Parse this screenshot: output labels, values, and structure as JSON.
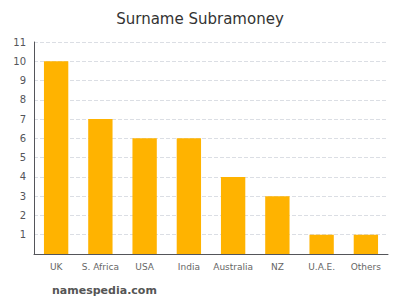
{
  "chart_data": {
    "type": "bar",
    "title": "Surname Subramoney",
    "categories": [
      "UK",
      "S. Africa",
      "USA",
      "India",
      "Australia",
      "NZ",
      "U.A.E.",
      "Others"
    ],
    "values": [
      10.0,
      7.0,
      6.0,
      6.0,
      4.0,
      3.0,
      1.0,
      1.0
    ],
    "color": "#FFB300",
    "ylim": [
      0,
      11
    ],
    "yticks": [
      1,
      2,
      3,
      4,
      5,
      6,
      7,
      8,
      9,
      10,
      11
    ],
    "grid": true,
    "annotation": "namespedia.com"
  }
}
